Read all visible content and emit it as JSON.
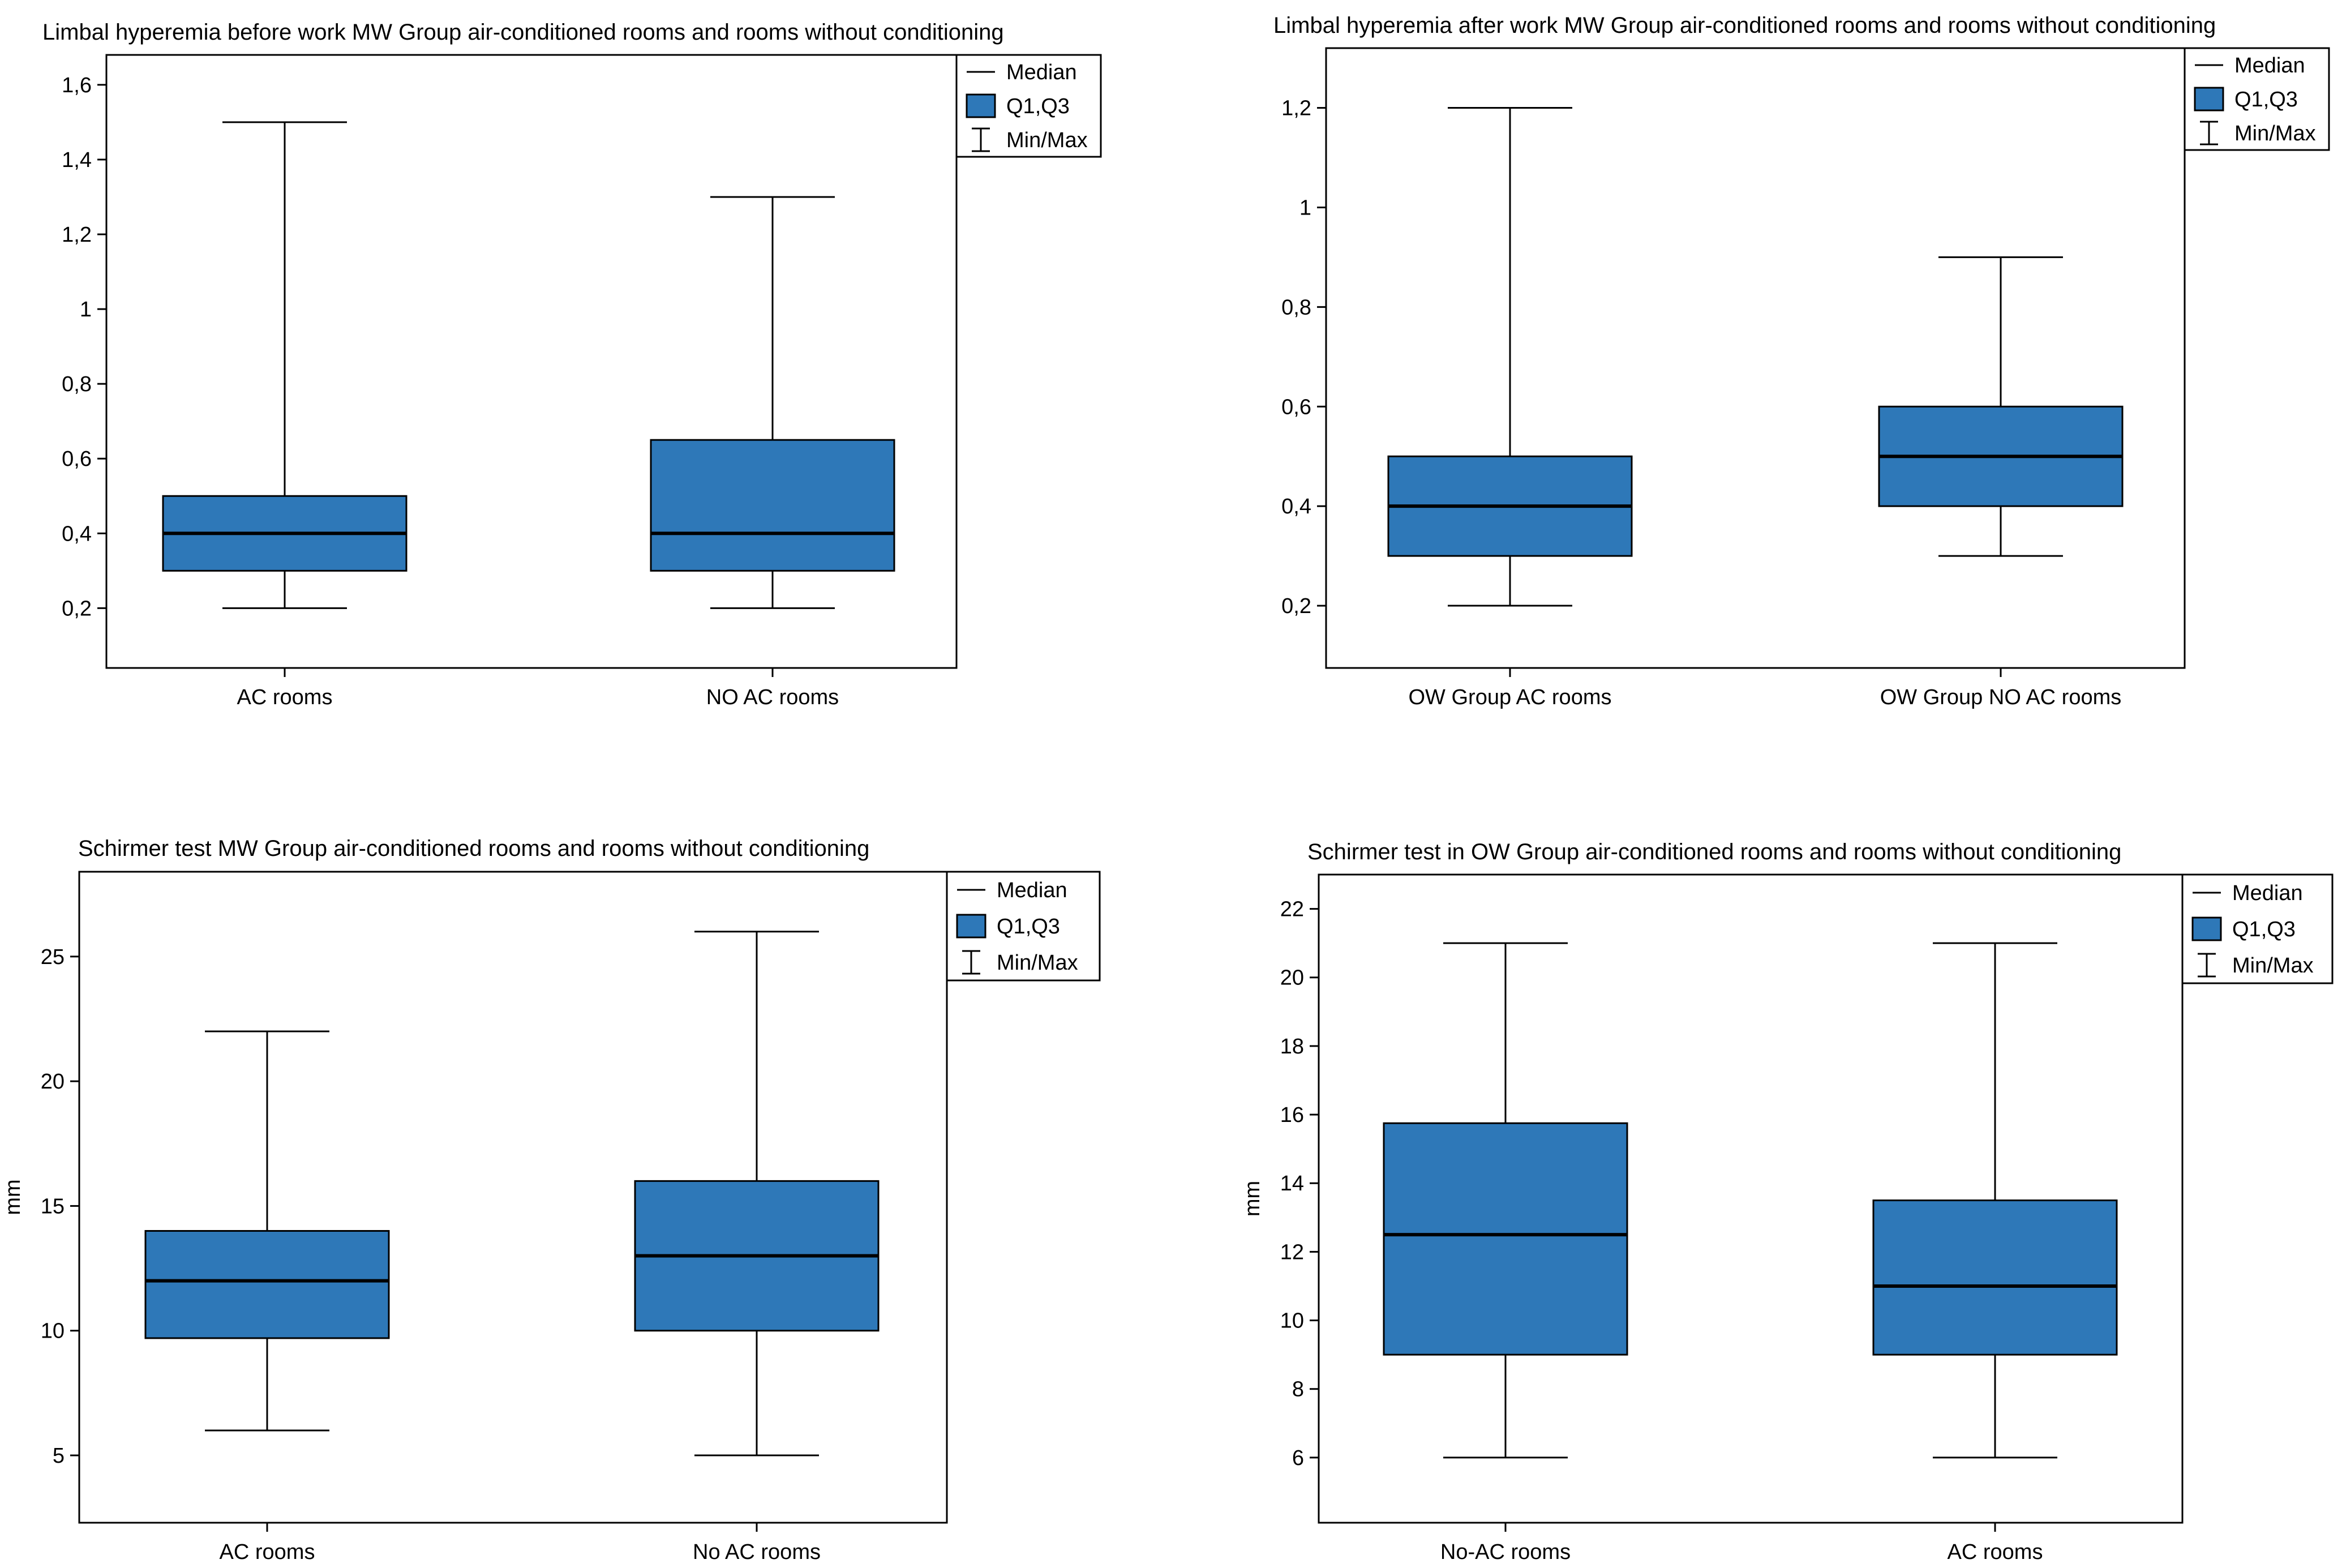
{
  "legend": {
    "median": "Median",
    "quartiles": "Q1,Q3",
    "minmax": "Min/Max"
  },
  "colors": {
    "box_fill": "#2E78B8",
    "stroke": "#000000",
    "background": "#ffffff"
  },
  "chart_data": [
    {
      "type": "box",
      "title": "Limbal hyperemia before work MW Group air-conditioned rooms and rooms without conditioning",
      "ylabel": "",
      "ylim": [
        0.04,
        1.68
      ],
      "yticks": [
        0.2,
        0.4,
        0.6,
        0.8,
        1,
        1.2,
        1.4,
        1.6
      ],
      "ytick_labels": [
        "0,2",
        "0,4",
        "0,6",
        "0,8",
        "1",
        "1,2",
        "1,4",
        "1,6"
      ],
      "categories": [
        "AC rooms",
        "NO AC rooms"
      ],
      "series": [
        {
          "min": 0.2,
          "q1": 0.3,
          "median": 0.4,
          "q3": 0.5,
          "max": 1.5
        },
        {
          "min": 0.2,
          "q1": 0.3,
          "median": 0.4,
          "q3": 0.65,
          "max": 1.3
        }
      ]
    },
    {
      "type": "box",
      "title": "Limbal hyperemia after work MW Group air-conditioned rooms and rooms without conditioning",
      "ylabel": "",
      "ylim": [
        0.075,
        1.32
      ],
      "yticks": [
        0.2,
        0.4,
        0.6,
        0.8,
        1,
        1.2
      ],
      "ytick_labels": [
        "0,2",
        "0,4",
        "0,6",
        "0,8",
        "1",
        "1,2"
      ],
      "categories": [
        "OW Group AC rooms",
        "OW Group NO AC rooms"
      ],
      "series": [
        {
          "min": 0.2,
          "q1": 0.3,
          "median": 0.4,
          "q3": 0.5,
          "max": 1.2
        },
        {
          "min": 0.3,
          "q1": 0.4,
          "median": 0.5,
          "q3": 0.6,
          "max": 0.9
        }
      ]
    },
    {
      "type": "box",
      "title": "Schirmer test MW Group air-conditioned rooms and rooms without conditioning",
      "ylabel": "mm",
      "ylim": [
        2.3,
        28.4
      ],
      "yticks": [
        5,
        10,
        15,
        20,
        25
      ],
      "ytick_labels": [
        "5",
        "10",
        "15",
        "20",
        "25"
      ],
      "categories": [
        "AC rooms",
        "No AC  rooms"
      ],
      "series": [
        {
          "min": 6,
          "q1": 9.7,
          "median": 12,
          "q3": 14,
          "max": 22
        },
        {
          "min": 5,
          "q1": 10,
          "median": 13,
          "q3": 16,
          "max": 26
        }
      ]
    },
    {
      "type": "box",
      "title": "Schirmer test in OW Group air-conditioned rooms and rooms without conditioning",
      "ylabel": "mm",
      "ylim": [
        4.1,
        23.0
      ],
      "yticks": [
        6,
        8,
        10,
        12,
        14,
        16,
        18,
        20,
        22
      ],
      "ytick_labels": [
        "6",
        "8",
        "10",
        "12",
        "14",
        "16",
        "18",
        "20",
        "22"
      ],
      "categories": [
        "No-AC rooms",
        "AC rooms"
      ],
      "series": [
        {
          "min": 6,
          "q1": 9,
          "median": 12.5,
          "q3": 15.75,
          "max": 21
        },
        {
          "min": 6,
          "q1": 9,
          "median": 11,
          "q3": 13.5,
          "max": 21
        }
      ]
    }
  ]
}
